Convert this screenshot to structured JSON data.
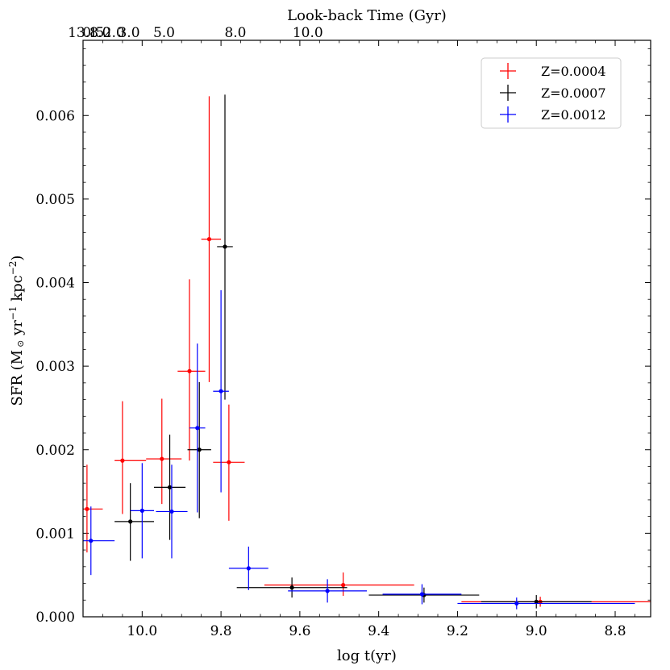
{
  "chart_data": {
    "type": "scatter",
    "title": "",
    "xlabel": "log t(yr)",
    "ylabel_main": "SFR (M",
    "ylabel_sun": "⊙",
    "ylabel_yr": " yr",
    "ylabel_yr_exp": "−1",
    "ylabel_kpc": " kpc",
    "ylabel_kpc_exp": "−2",
    "ylabel_close": ")",
    "top_xlabel": "Look-back Time (Gyr)",
    "xlim": [
      10.15,
      8.71
    ],
    "ylim": [
      0.0,
      0.0069
    ],
    "x_ticks": [
      10.0,
      9.8,
      9.6,
      9.4,
      9.2,
      9.0,
      8.8
    ],
    "x_tick_labels": [
      "10.0",
      "9.8",
      "9.6",
      "9.4",
      "9.2",
      "9.0",
      "8.8"
    ],
    "y_ticks": [
      0.0,
      0.001,
      0.002,
      0.003,
      0.004,
      0.005,
      0.006
    ],
    "y_tick_labels": [
      "0.000",
      "0.001",
      "0.002",
      "0.003",
      "0.004",
      "0.005",
      "0.006"
    ],
    "top_ticks": [
      13.8,
      10.0,
      8.0,
      5.0,
      3.0,
      2.0,
      1.0,
      0.5
    ],
    "top_tick_labels": [
      "13.8",
      "10.0",
      "8.0",
      "5.0",
      "3.0",
      "2.0",
      "1.0",
      "0.5"
    ],
    "legend_position": "top-right",
    "series": [
      {
        "name": "Z=0.0004",
        "color": "#ff0000",
        "points": [
          {
            "x": 10.14,
            "y": 0.00129,
            "xerr": [
              0.01,
              0.04
            ],
            "yerr": [
              0.00052,
              0.00053
            ]
          },
          {
            "x": 10.05,
            "y": 0.00187,
            "xerr": [
              0.02,
              0.06
            ],
            "yerr": [
              0.00064,
              0.00071
            ]
          },
          {
            "x": 9.95,
            "y": 0.00189,
            "xerr": [
              0.04,
              0.05
            ],
            "yerr": [
              0.00054,
              0.00072
            ]
          },
          {
            "x": 9.88,
            "y": 0.00294,
            "xerr": [
              0.03,
              0.04
            ],
            "yerr": [
              0.00107,
              0.0011
            ]
          },
          {
            "x": 9.83,
            "y": 0.00452,
            "xerr": [
              0.02,
              0.03
            ],
            "yerr": [
              0.00171,
              0.00171
            ]
          },
          {
            "x": 9.78,
            "y": 0.00185,
            "xerr": [
              0.04,
              0.04
            ],
            "yerr": [
              0.0007,
              0.00069
            ]
          },
          {
            "x": 9.49,
            "y": 0.00038,
            "xerr": [
              0.2,
              0.18
            ],
            "yerr": [
              0.00013,
              0.00015
            ]
          },
          {
            "x": 8.99,
            "y": 0.00018,
            "xerr": [
              0.2,
              0.35
            ],
            "yerr": [
              6e-05,
              6e-05
            ]
          }
        ]
      },
      {
        "name": "Z=0.0007",
        "color": "#000000",
        "points": [
          {
            "x": 10.03,
            "y": 0.00114,
            "xerr": [
              0.04,
              0.06
            ],
            "yerr": [
              0.00047,
              0.00046
            ]
          },
          {
            "x": 9.93,
            "y": 0.00155,
            "xerr": [
              0.04,
              0.04
            ],
            "yerr": [
              0.00063,
              0.00063
            ]
          },
          {
            "x": 9.855,
            "y": 0.002,
            "xerr": [
              0.03,
              0.03
            ],
            "yerr": [
              0.00082,
              0.00081
            ]
          },
          {
            "x": 9.79,
            "y": 0.00443,
            "xerr": [
              0.02,
              0.02
            ],
            "yerr": [
              0.00183,
              0.00182
            ]
          },
          {
            "x": 9.62,
            "y": 0.00035,
            "xerr": [
              0.14,
              0.14
            ],
            "yerr": [
              0.00012,
              0.00012
            ]
          },
          {
            "x": 9.285,
            "y": 0.00026,
            "xerr": [
              0.14,
              0.14
            ],
            "yerr": [
              9e-05,
              9e-05
            ]
          },
          {
            "x": 9.0,
            "y": 0.00018,
            "xerr": [
              0.14,
              0.14
            ],
            "yerr": [
              8e-05,
              8e-05
            ]
          }
        ]
      },
      {
        "name": "Z=0.0012",
        "color": "#0000ff",
        "points": [
          {
            "x": 10.13,
            "y": 0.00091,
            "xerr": [
              0.03,
              0.06
            ],
            "yerr": [
              0.00041,
              0.00041
            ]
          },
          {
            "x": 10.0,
            "y": 0.00127,
            "xerr": [
              0.03,
              0.03
            ],
            "yerr": [
              0.00057,
              0.00057
            ]
          },
          {
            "x": 9.925,
            "y": 0.00126,
            "xerr": [
              0.04,
              0.04
            ],
            "yerr": [
              0.00056,
              0.00056
            ]
          },
          {
            "x": 9.86,
            "y": 0.00226,
            "xerr": [
              0.02,
              0.02
            ],
            "yerr": [
              0.00101,
              0.00101
            ]
          },
          {
            "x": 9.8,
            "y": 0.0027,
            "xerr": [
              0.02,
              0.02
            ],
            "yerr": [
              0.00121,
              0.00121
            ]
          },
          {
            "x": 9.73,
            "y": 0.00058,
            "xerr": [
              0.05,
              0.05
            ],
            "yerr": [
              0.00026,
              0.00026
            ]
          },
          {
            "x": 9.53,
            "y": 0.00031,
            "xerr": [
              0.1,
              0.1
            ],
            "yerr": [
              0.00014,
              0.00014
            ]
          },
          {
            "x": 9.29,
            "y": 0.00027,
            "xerr": [
              0.1,
              0.1
            ],
            "yerr": [
              0.00012,
              0.00012
            ]
          },
          {
            "x": 9.05,
            "y": 0.00016,
            "xerr": [
              0.15,
              0.3
            ],
            "yerr": [
              7e-05,
              7e-05
            ]
          }
        ]
      }
    ]
  }
}
